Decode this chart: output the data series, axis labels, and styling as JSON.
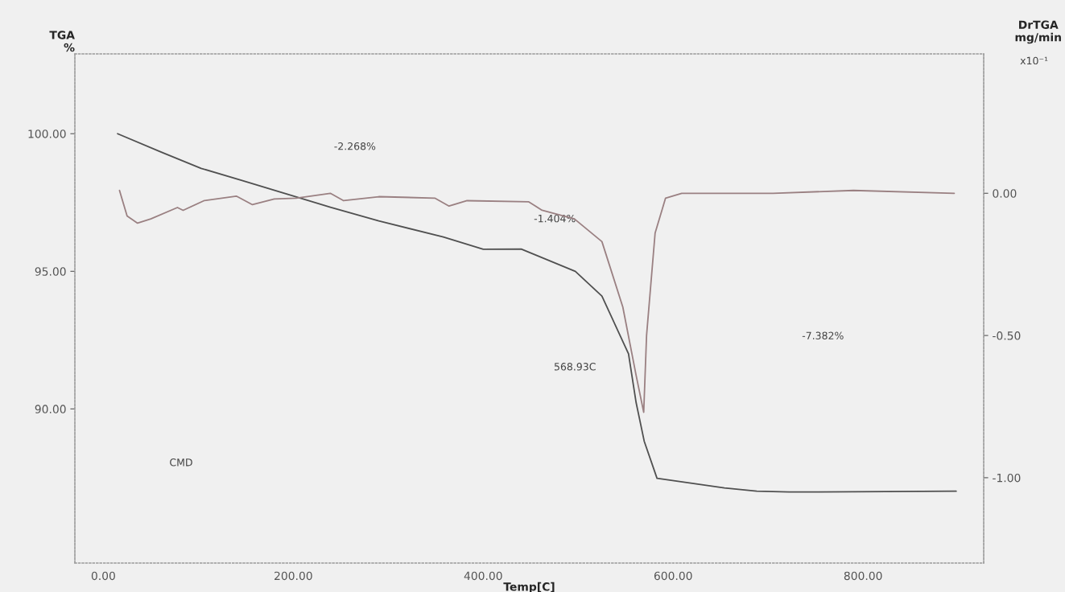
{
  "chart_data": {
    "type": "line",
    "xlabel": "Temp[C]",
    "ylabel": "TGA\n%",
    "y2label": "DrTGA\nmg/min",
    "xlim": [
      -30,
      927
    ],
    "xticks": [
      {
        "value": 0,
        "label": "0.00"
      },
      {
        "value": 200,
        "label": "200.00"
      },
      {
        "value": 400,
        "label": "400.00"
      },
      {
        "value": 600,
        "label": "600.00"
      },
      {
        "value": 800,
        "label": "800.00"
      }
    ],
    "ylim": [
      84.4,
      102.9
    ],
    "yticks": [
      {
        "value": 90,
        "label": "90.00"
      },
      {
        "value": 95,
        "label": "95.00"
      },
      {
        "value": 100,
        "label": "100.00"
      }
    ],
    "y2lim": [
      -1.3,
      0.49
    ],
    "y2ticks": [
      {
        "value": -1,
        "label": "-1.00"
      },
      {
        "value": -0.5,
        "label": "-0.50"
      },
      {
        "value": 0,
        "label": "0.00"
      }
    ],
    "grid": false,
    "legend": false,
    "annotations": [
      "-2.268%",
      "-1.404%",
      "-7.382%",
      "568.93C",
      "CMD",
      "x10⁻¹"
    ],
    "series": [
      {
        "color": "#505050",
        "x": [
          15,
          61,
          103,
          146,
          188,
          239,
          290,
          358,
          400,
          440,
          497,
          525,
          553,
          561,
          569.5,
          583,
          620,
          654,
          688,
          722,
          898
        ],
        "values": [
          100.0,
          99.33,
          98.74,
          98.3,
          97.86,
          97.33,
          96.83,
          96.25,
          95.8,
          95.81,
          95.0,
          94.1,
          92.0,
          90.23,
          88.83,
          87.48,
          87.3,
          87.13,
          87.01,
          86.98,
          87.01
        ]
      },
      {
        "color": "#9a8082",
        "axis": "y2",
        "x": [
          17,
          25,
          36,
          50,
          78,
          84,
          106,
          140,
          157,
          180,
          203,
          239,
          253,
          290,
          349,
          364,
          383,
          448,
          462,
          496,
          525,
          547,
          561,
          569,
          572,
          581,
          592,
          609,
          654,
          705,
          790,
          896
        ],
        "values": [
          0.01,
          -0.08,
          -0.105,
          -0.09,
          -0.05,
          -0.06,
          -0.026,
          -0.01,
          -0.04,
          -0.02,
          -0.017,
          0.0,
          -0.026,
          -0.012,
          -0.017,
          -0.045,
          -0.026,
          -0.03,
          -0.06,
          -0.09,
          -0.17,
          -0.4,
          -0.64,
          -0.77,
          -0.5,
          -0.14,
          -0.017,
          0.0,
          0.0,
          0.0,
          0.01,
          0.0
        ]
      }
    ]
  }
}
